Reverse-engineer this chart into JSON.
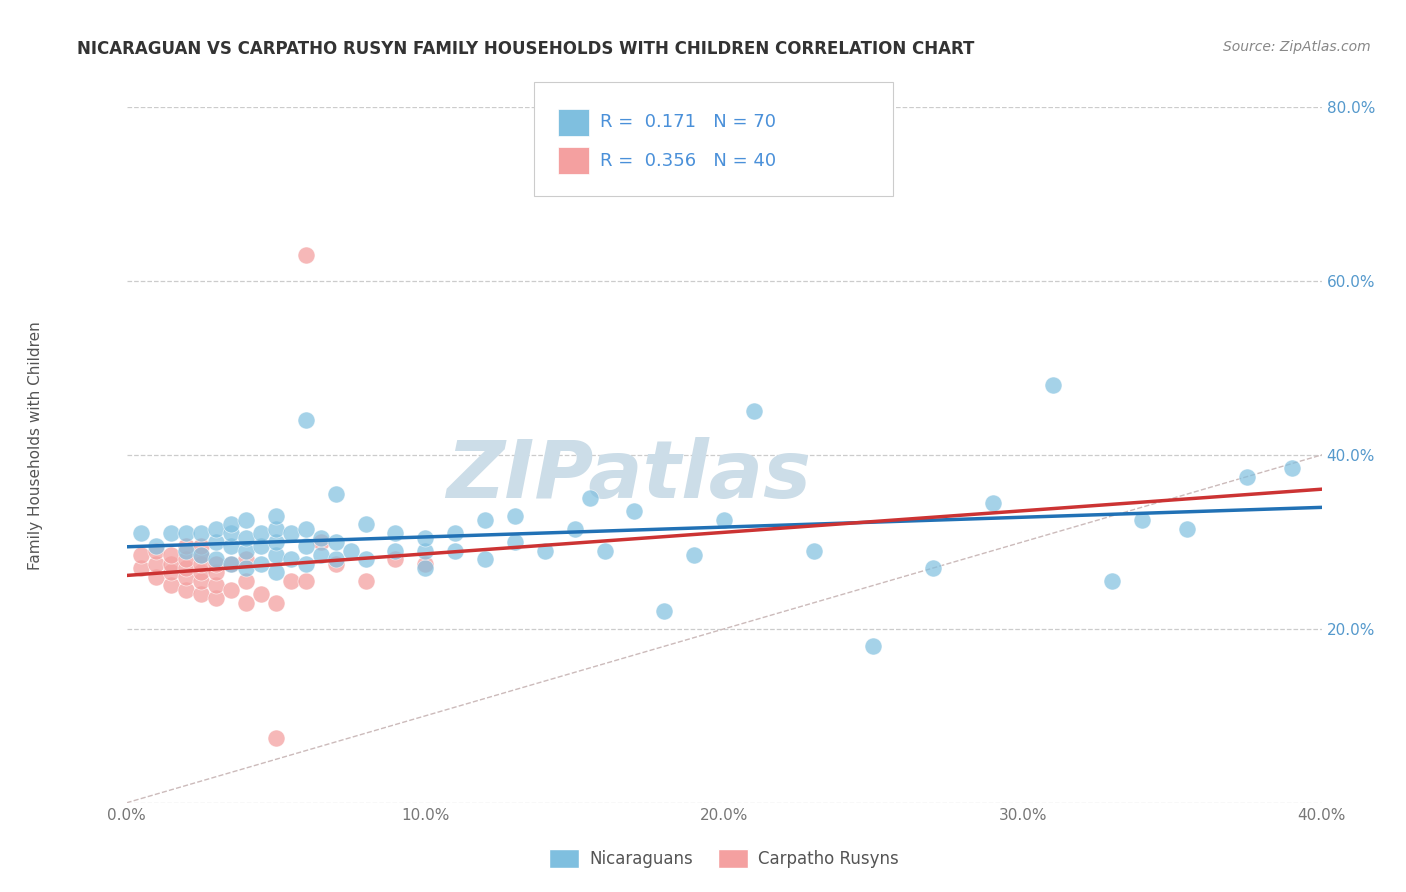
{
  "title": "NICARAGUAN VS CARPATHO RUSYN FAMILY HOUSEHOLDS WITH CHILDREN CORRELATION CHART",
  "source": "Source: ZipAtlas.com",
  "ylabel": "Family Households with Children",
  "xlim": [
    0.0,
    0.4
  ],
  "ylim": [
    0.0,
    0.8
  ],
  "xticks": [
    0.0,
    0.1,
    0.2,
    0.3,
    0.4
  ],
  "yticks": [
    0.0,
    0.2,
    0.4,
    0.6,
    0.8
  ],
  "xtick_labels": [
    "0.0%",
    "10.0%",
    "20.0%",
    "30.0%",
    "40.0%"
  ],
  "ytick_labels_right": [
    "",
    "20.0%",
    "40.0%",
    "60.0%",
    "80.0%"
  ],
  "blue_R": 0.171,
  "blue_N": 70,
  "pink_R": 0.356,
  "pink_N": 40,
  "blue_color": "#7fbfdf",
  "pink_color": "#f4a0a0",
  "blue_line_color": "#2171b5",
  "pink_line_color": "#cc3333",
  "diagonal_color": "#cccccc",
  "watermark": "ZIPatlas",
  "watermark_color": "#ccdde8",
  "legend_text_color": "#4a90d9",
  "blue_scatter_x": [
    0.005,
    0.01,
    0.015,
    0.02,
    0.02,
    0.025,
    0.025,
    0.03,
    0.03,
    0.03,
    0.035,
    0.035,
    0.035,
    0.035,
    0.04,
    0.04,
    0.04,
    0.04,
    0.045,
    0.045,
    0.045,
    0.05,
    0.05,
    0.05,
    0.05,
    0.05,
    0.055,
    0.055,
    0.06,
    0.06,
    0.06,
    0.06,
    0.065,
    0.065,
    0.07,
    0.07,
    0.07,
    0.075,
    0.08,
    0.08,
    0.09,
    0.09,
    0.1,
    0.1,
    0.1,
    0.11,
    0.11,
    0.12,
    0.12,
    0.13,
    0.13,
    0.14,
    0.15,
    0.155,
    0.16,
    0.17,
    0.18,
    0.19,
    0.2,
    0.21,
    0.23,
    0.25,
    0.27,
    0.29,
    0.31,
    0.33,
    0.34,
    0.355,
    0.375,
    0.39
  ],
  "blue_scatter_y": [
    0.31,
    0.295,
    0.31,
    0.29,
    0.31,
    0.285,
    0.31,
    0.28,
    0.3,
    0.315,
    0.275,
    0.295,
    0.31,
    0.32,
    0.27,
    0.29,
    0.305,
    0.325,
    0.275,
    0.295,
    0.31,
    0.265,
    0.285,
    0.3,
    0.315,
    0.33,
    0.28,
    0.31,
    0.275,
    0.295,
    0.315,
    0.44,
    0.285,
    0.305,
    0.28,
    0.3,
    0.355,
    0.29,
    0.28,
    0.32,
    0.29,
    0.31,
    0.27,
    0.29,
    0.305,
    0.29,
    0.31,
    0.28,
    0.325,
    0.3,
    0.33,
    0.29,
    0.315,
    0.35,
    0.29,
    0.335,
    0.22,
    0.285,
    0.325,
    0.45,
    0.29,
    0.18,
    0.27,
    0.345,
    0.48,
    0.255,
    0.325,
    0.315,
    0.375,
    0.385
  ],
  "pink_scatter_x": [
    0.005,
    0.005,
    0.01,
    0.01,
    0.01,
    0.015,
    0.015,
    0.015,
    0.015,
    0.02,
    0.02,
    0.02,
    0.02,
    0.02,
    0.025,
    0.025,
    0.025,
    0.025,
    0.025,
    0.025,
    0.03,
    0.03,
    0.03,
    0.03,
    0.035,
    0.035,
    0.04,
    0.04,
    0.04,
    0.045,
    0.05,
    0.055,
    0.06,
    0.065,
    0.07,
    0.08,
    0.09,
    0.1,
    0.06,
    0.05
  ],
  "pink_scatter_y": [
    0.27,
    0.285,
    0.26,
    0.275,
    0.29,
    0.25,
    0.265,
    0.275,
    0.285,
    0.245,
    0.26,
    0.27,
    0.28,
    0.295,
    0.24,
    0.255,
    0.265,
    0.275,
    0.285,
    0.295,
    0.235,
    0.25,
    0.265,
    0.275,
    0.245,
    0.275,
    0.23,
    0.255,
    0.28,
    0.24,
    0.23,
    0.255,
    0.255,
    0.3,
    0.275,
    0.255,
    0.28,
    0.275,
    0.63,
    0.075
  ]
}
